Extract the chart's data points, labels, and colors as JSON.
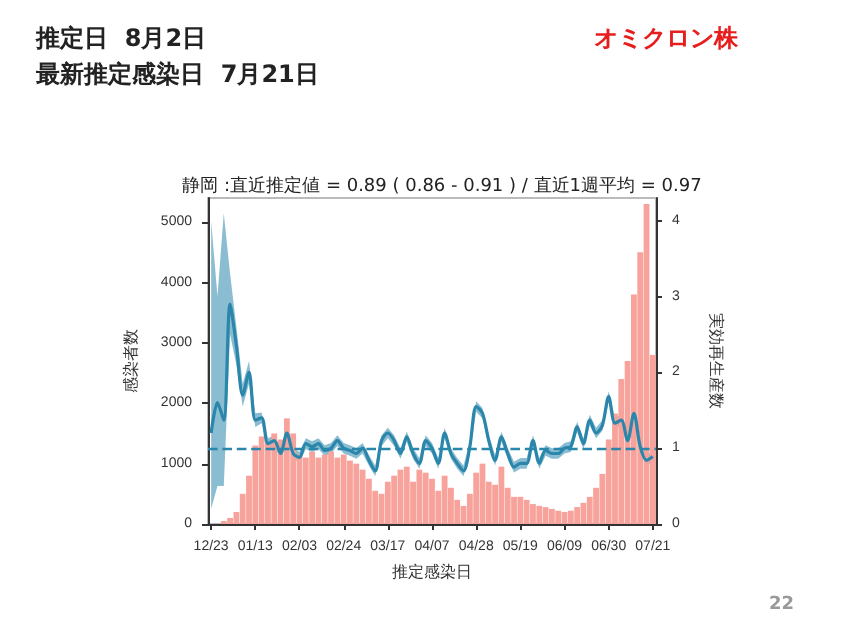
{
  "chart_data": {
    "type": "bar",
    "title": "静岡 :直近推定値 = 0.89 ( 0.86 - 0.91 ) / 直近1週平均 = 0.97",
    "annotations": [
      "推定日  8月2日",
      "最新推定感染日  7月21日",
      "オミクロン株",
      "22"
    ],
    "xlabel": "推定感染日",
    "ylabel": "感染者数",
    "y2label": "実効再生産数",
    "categories": [
      "12/23",
      null,
      null,
      null,
      null,
      null,
      null,
      "01/13",
      null,
      null,
      null,
      null,
      null,
      null,
      "02/03",
      null,
      null,
      null,
      null,
      null,
      null,
      "02/24",
      null,
      null,
      null,
      null,
      null,
      null,
      "03/17",
      null,
      null,
      null,
      null,
      null,
      null,
      "04/07",
      null,
      null,
      null,
      null,
      null,
      null,
      "04/28",
      null,
      null,
      null,
      null,
      null,
      null,
      "05/19",
      null,
      null,
      null,
      null,
      null,
      null,
      "06/09",
      null,
      null,
      null,
      null,
      null,
      null,
      "06/30",
      null,
      null,
      null,
      null,
      null,
      null,
      "07/21"
    ],
    "series": [
      {
        "color": "#f7a29b",
        "values": [
          0,
          0,
          50,
          100,
          200,
          500,
          800,
          1300,
          1450,
          1350,
          1500,
          1400,
          1750,
          1500,
          1150,
          1100,
          1200,
          1100,
          1150,
          1200,
          1100,
          1150,
          1050,
          1000,
          900,
          750,
          550,
          500,
          700,
          800,
          900,
          950,
          700,
          900,
          850,
          750,
          550,
          800,
          600,
          400,
          300,
          500,
          850,
          1000,
          700,
          650,
          950,
          600,
          450,
          450,
          400,
          330,
          300,
          280,
          250,
          220,
          200,
          220,
          280,
          350,
          450,
          600,
          830,
          1400,
          1830,
          2400,
          2700,
          3800,
          4500,
          5300,
          2800
        ]
      },
      {
        "type": "line",
        "axis": "y2",
        "color": "#2a86ab",
        "values": [
          1.2,
          1.6,
          1.37,
          2.9,
          2.35,
          1.7,
          2.0,
          1.37,
          1.4,
          1.06,
          1.1,
          0.93,
          1.2,
          0.93,
          0.88,
          1.06,
          1.02,
          1.06,
          0.97,
          1.0,
          1.1,
          1.0,
          0.97,
          0.93,
          1.0,
          0.84,
          0.7,
          1.1,
          1.2,
          1.1,
          0.93,
          1.15,
          0.93,
          0.8,
          1.1,
          1.0,
          0.8,
          1.2,
          0.93,
          0.8,
          0.7,
          1.02,
          1.55,
          1.46,
          1.1,
          0.84,
          1.15,
          0.93,
          0.75,
          0.8,
          0.8,
          1.1,
          0.8,
          0.97,
          0.93,
          0.93,
          1.0,
          1.02,
          1.28,
          1.06,
          1.37,
          1.2,
          1.3,
          1.68,
          1.33,
          1.37,
          1.1,
          1.46,
          1.02,
          0.84,
          0.89
        ],
        "lower": [
          0.2,
          0.5,
          0.5,
          2.5,
          2.1,
          1.55,
          1.85,
          1.28,
          1.33,
          0.99,
          1.03,
          0.86,
          1.13,
          0.86,
          0.81,
          0.99,
          0.95,
          0.99,
          0.9,
          0.93,
          1.03,
          0.93,
          0.9,
          0.86,
          0.93,
          0.77,
          0.63,
          1.03,
          1.13,
          1.03,
          0.86,
          1.08,
          0.86,
          0.73,
          1.03,
          0.93,
          0.73,
          1.13,
          0.86,
          0.73,
          0.63,
          0.95,
          1.48,
          1.39,
          1.03,
          0.77,
          1.08,
          0.86,
          0.68,
          0.73,
          0.73,
          1.03,
          0.73,
          0.9,
          0.86,
          0.86,
          0.93,
          0.95,
          1.21,
          0.99,
          1.3,
          1.13,
          1.23,
          1.61,
          1.26,
          1.3,
          1.03,
          1.39,
          0.95,
          0.77,
          0.82
        ],
        "upper": [
          4.0,
          3.0,
          4.1,
          3.3,
          2.6,
          1.85,
          2.15,
          1.46,
          1.47,
          1.13,
          1.17,
          1.0,
          1.27,
          1.0,
          0.95,
          1.13,
          1.09,
          1.13,
          1.04,
          1.07,
          1.17,
          1.07,
          1.04,
          1.0,
          1.07,
          0.91,
          0.77,
          1.17,
          1.27,
          1.17,
          1.0,
          1.22,
          1.0,
          0.87,
          1.17,
          1.07,
          0.87,
          1.27,
          1.0,
          0.87,
          0.77,
          1.09,
          1.62,
          1.53,
          1.17,
          0.91,
          1.22,
          1.0,
          0.82,
          0.87,
          0.87,
          1.17,
          0.87,
          1.04,
          1.0,
          1.0,
          1.07,
          1.09,
          1.35,
          1.13,
          1.44,
          1.27,
          1.37,
          1.75,
          1.4,
          1.44,
          1.17,
          1.53,
          1.09,
          0.91,
          0.96
        ]
      }
    ],
    "ylim": [
      0,
      5400
    ],
    "yticks": [
      0,
      1000,
      2000,
      3000,
      4000,
      5000
    ],
    "y2lim": [
      0,
      4.3
    ],
    "y2ticks": [
      0,
      1,
      2,
      3,
      4
    ],
    "ref_lines": [
      {
        "axis": "y2",
        "value": 1,
        "color": "#2a86ab",
        "line_style": "dashed"
      }
    ],
    "grid": false
  }
}
